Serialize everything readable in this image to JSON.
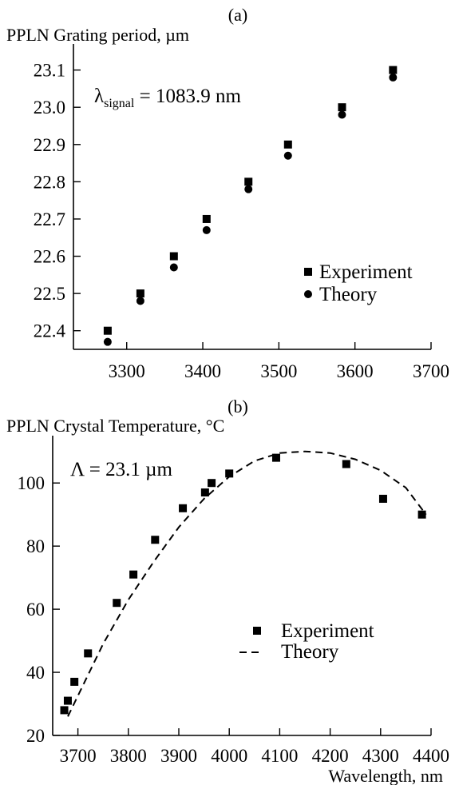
{
  "chart_data": [
    {
      "panel_label": "(a)",
      "type": "scatter",
      "ylabel": "PPLN Grating period, µm",
      "xlabel": "",
      "annotation": {
        "symbol": "λ",
        "subscript": "signal",
        "text": " = 1083.9 nm"
      },
      "xlim": [
        3230,
        3700
      ],
      "ylim": [
        22.35,
        23.17
      ],
      "xticks": [
        3300,
        3400,
        3500,
        3600,
        3700
      ],
      "xtick_labels": [
        "3300",
        "3400",
        "3500",
        "3600",
        "3700"
      ],
      "yticks": [
        22.4,
        22.5,
        22.6,
        22.7,
        22.8,
        22.9,
        23.0,
        23.1
      ],
      "ytick_labels": [
        "22.4",
        "22.5",
        "22.6",
        "22.7",
        "22.8",
        "22.9",
        "23.0",
        "23.1"
      ],
      "legend_position": "right",
      "series": [
        {
          "name": "Experiment",
          "marker": "square",
          "x": [
            3275,
            3318,
            3362,
            3405,
            3460,
            3512,
            3583,
            3650
          ],
          "y": [
            22.4,
            22.5,
            22.6,
            22.7,
            22.8,
            22.9,
            23.0,
            23.1
          ]
        },
        {
          "name": "Theory",
          "marker": "circle",
          "x": [
            3275,
            3318,
            3362,
            3405,
            3460,
            3512,
            3583,
            3650
          ],
          "y": [
            22.37,
            22.48,
            22.57,
            22.67,
            22.78,
            22.87,
            22.98,
            23.08
          ]
        }
      ]
    },
    {
      "panel_label": "(b)",
      "type": "scatter",
      "ylabel": "PPLN Crystal Temperature, °C",
      "xlabel": "Wavelength, nm",
      "annotation": {
        "symbol": "Λ",
        "subscript": "",
        "text": " = 23.1 µm"
      },
      "xlim": [
        3650,
        4400
      ],
      "ylim": [
        20,
        115
      ],
      "xticks": [
        3700,
        3800,
        3900,
        4000,
        4100,
        4200,
        4300,
        4400
      ],
      "xtick_labels": [
        "3700",
        "3800",
        "3900",
        "4000",
        "4100",
        "4200",
        "4300",
        "4400"
      ],
      "yticks": [
        20,
        40,
        60,
        80,
        100
      ],
      "ytick_labels": [
        "20",
        "40",
        "60",
        "80",
        "100"
      ],
      "legend_position": "right",
      "series": [
        {
          "name": "Experiment",
          "marker": "square",
          "x": [
            3673,
            3680,
            3693,
            3720,
            3777,
            3810,
            3853,
            3908,
            3952,
            3965,
            4000,
            4093,
            4232,
            4305,
            4382
          ],
          "y": [
            28,
            31,
            37,
            46,
            62,
            71,
            82,
            92,
            97,
            100,
            103,
            108,
            106,
            95,
            90
          ]
        },
        {
          "name": "Theory",
          "line": "dashed",
          "x": [
            3680,
            3750,
            3800,
            3850,
            3900,
            3950,
            4000,
            4050,
            4100,
            4150,
            4200,
            4250,
            4300,
            4350,
            4390
          ],
          "y": [
            26,
            49,
            63,
            75,
            86,
            95,
            102,
            107,
            109.5,
            110,
            109.5,
            107.5,
            104,
            98.5,
            90
          ]
        }
      ]
    }
  ]
}
